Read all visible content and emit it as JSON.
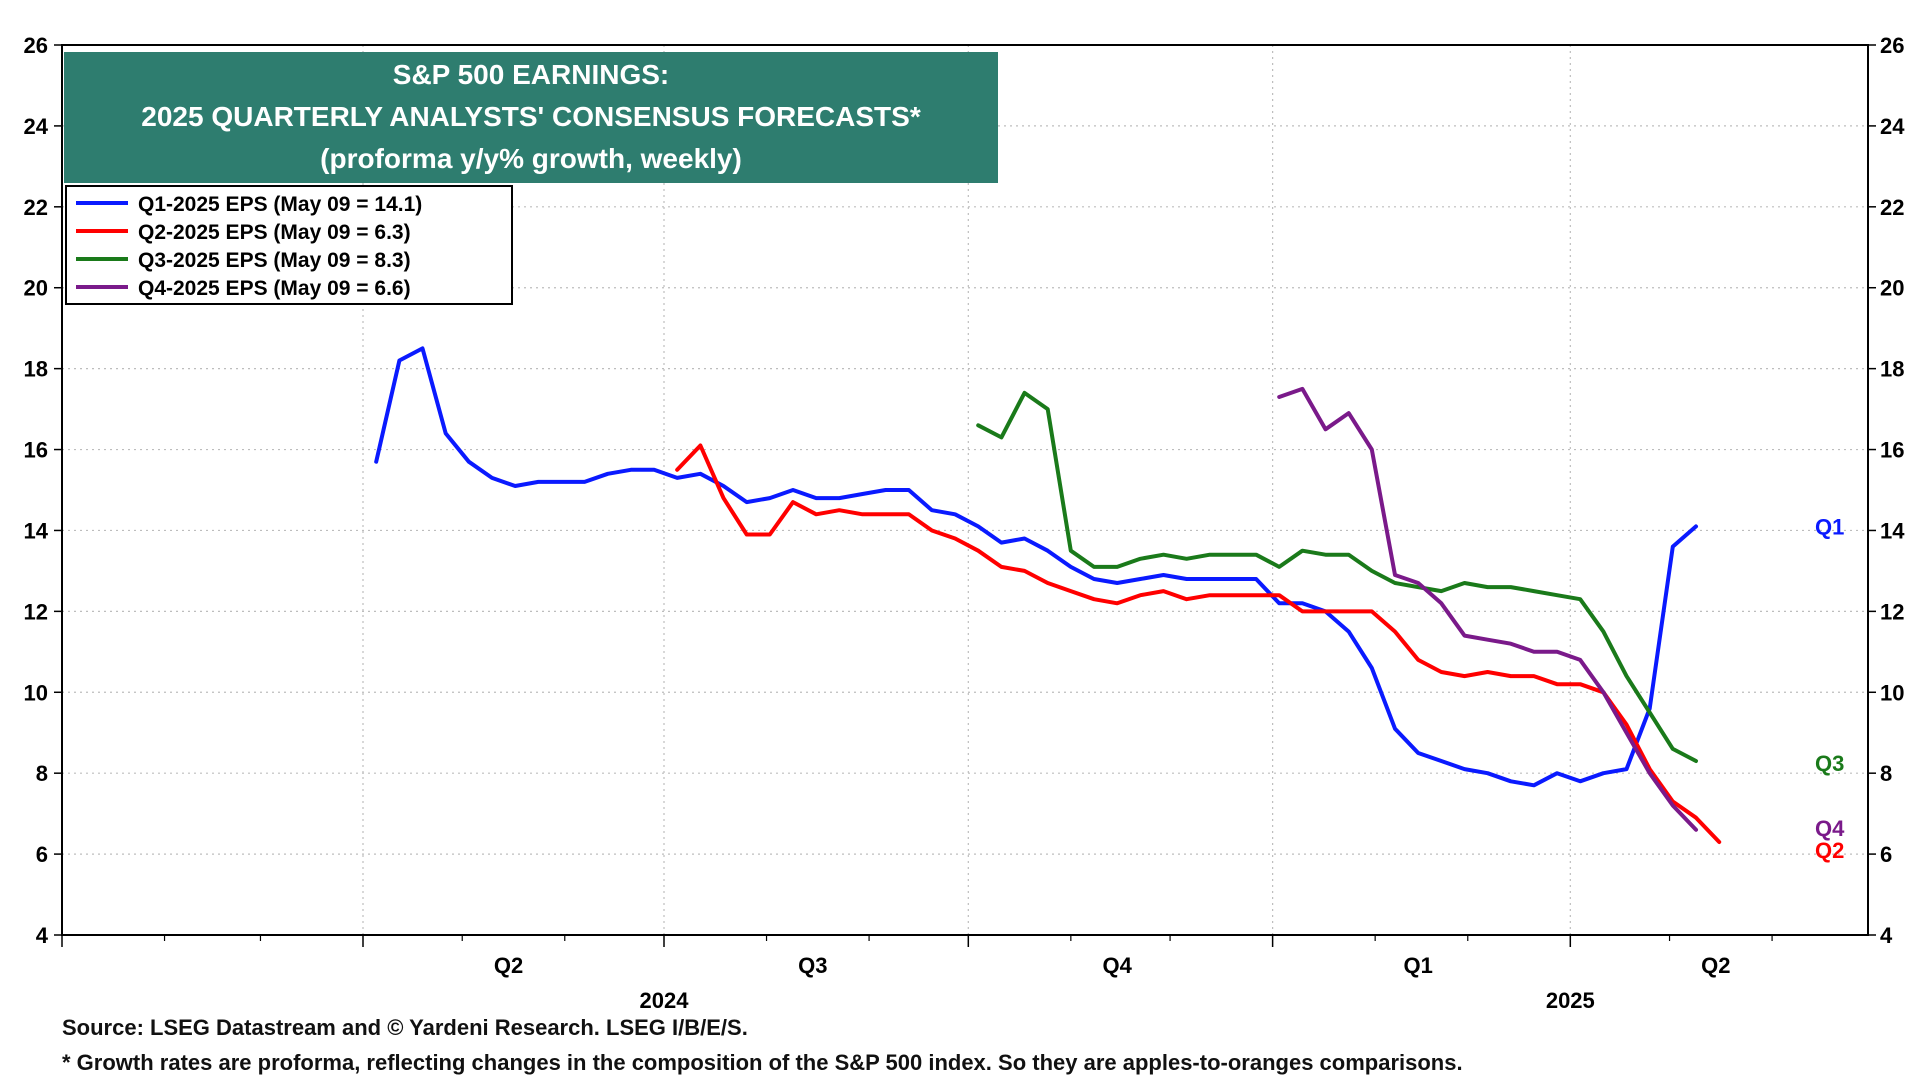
{
  "chart_data": {
    "type": "line",
    "title_lines": [
      "S&P 500 EARNINGS:",
      "2025 QUARTERLY ANALYSTS' CONSENSUS FORECASTS*",
      "(proforma y/y% growth, weekly)"
    ],
    "xlabel": "",
    "ylabel": "",
    "ylim": [
      4,
      26
    ],
    "yticks": [
      4,
      6,
      8,
      10,
      12,
      14,
      16,
      18,
      20,
      22,
      24,
      26
    ],
    "y_axis_both_sides": true,
    "xlim": [
      "2024-01-01",
      "2025-06-30"
    ],
    "grid": true,
    "legend_position": "top-left",
    "quarter_labels": [
      {
        "label": "Q2",
        "date": "2024-05-15"
      },
      {
        "label": "Q3",
        "date": "2024-08-15"
      },
      {
        "label": "Q4",
        "date": "2024-11-15"
      },
      {
        "label": "Q1",
        "date": "2025-02-14"
      },
      {
        "label": "Q2",
        "date": "2025-05-15"
      }
    ],
    "year_labels": [
      {
        "label": "2024",
        "date": "2024-07-01"
      },
      {
        "label": "2025",
        "date": "2025-04-01"
      }
    ],
    "colors": {
      "title_bg": "#2e7d6f",
      "q1": "#0a1aff",
      "q2": "#ff0000",
      "q3": "#1a7a1a",
      "q4": "#7a1a8a"
    },
    "series": [
      {
        "name": "Q1-2025 EPS (May 09 = 14.1)",
        "end_label": "Q1",
        "color_key": "q1",
        "start": "2024-04-05",
        "values": [
          15.7,
          18.2,
          18.5,
          16.4,
          15.7,
          15.3,
          15.1,
          15.2,
          15.2,
          15.2,
          15.4,
          15.5,
          15.5,
          15.3,
          15.4,
          15.1,
          14.7,
          14.8,
          15.0,
          14.8,
          14.8,
          14.9,
          15.0,
          15.0,
          14.5,
          14.4,
          14.1,
          13.7,
          13.8,
          13.5,
          13.1,
          12.8,
          12.7,
          12.8,
          12.9,
          12.8,
          12.8,
          12.8,
          12.8,
          12.2,
          12.2,
          12.0,
          11.5,
          10.6,
          9.1,
          8.5,
          8.3,
          8.1,
          8.0,
          7.8,
          7.7,
          8.0,
          7.8,
          8.0,
          8.1,
          9.6,
          13.6,
          14.1
        ]
      },
      {
        "name": "Q2-2025 EPS (May 09 = 6.3)",
        "end_label": "Q2",
        "color_key": "q2",
        "start": "2024-07-05",
        "values": [
          15.5,
          16.1,
          14.8,
          13.9,
          13.9,
          14.7,
          14.4,
          14.5,
          14.4,
          14.4,
          14.4,
          14.0,
          13.8,
          13.5,
          13.1,
          13.0,
          12.7,
          12.5,
          12.3,
          12.2,
          12.4,
          12.5,
          12.3,
          12.4,
          12.4,
          12.4,
          12.4,
          12.0,
          12.0,
          12.0,
          12.0,
          11.5,
          10.8,
          10.5,
          10.4,
          10.5,
          10.4,
          10.4,
          10.2,
          10.2,
          10.0,
          9.2,
          8.1,
          7.3,
          6.9,
          6.3
        ]
      },
      {
        "name": "Q3-2025 EPS (May 09 = 8.3)",
        "end_label": "Q3",
        "color_key": "q3",
        "start": "2024-10-04",
        "values": [
          16.6,
          16.3,
          17.4,
          17.0,
          13.5,
          13.1,
          13.1,
          13.3,
          13.4,
          13.3,
          13.4,
          13.4,
          13.4,
          13.1,
          13.5,
          13.4,
          13.4,
          13.0,
          12.7,
          12.6,
          12.5,
          12.7,
          12.6,
          12.6,
          12.5,
          12.4,
          12.3,
          11.5,
          10.4,
          9.5,
          8.6,
          8.3
        ]
      },
      {
        "name": "Q4-2025 EPS (May 09 = 6.6)",
        "end_label": "Q4",
        "color_key": "q4",
        "start": "2025-01-03",
        "values": [
          17.3,
          17.5,
          16.5,
          16.9,
          16.0,
          12.9,
          12.7,
          12.2,
          11.4,
          11.3,
          11.2,
          11.0,
          11.0,
          10.8,
          10.0,
          9.0,
          8.0,
          7.2,
          6.6
        ]
      }
    ]
  },
  "source_lines": [
    "Source: LSEG Datastream and © Yardeni Research. LSEG I/B/E/S.",
    "* Growth rates are proforma, reflecting changes in the composition of the S&P 500 index. So they are apples-to-oranges comparisons."
  ]
}
